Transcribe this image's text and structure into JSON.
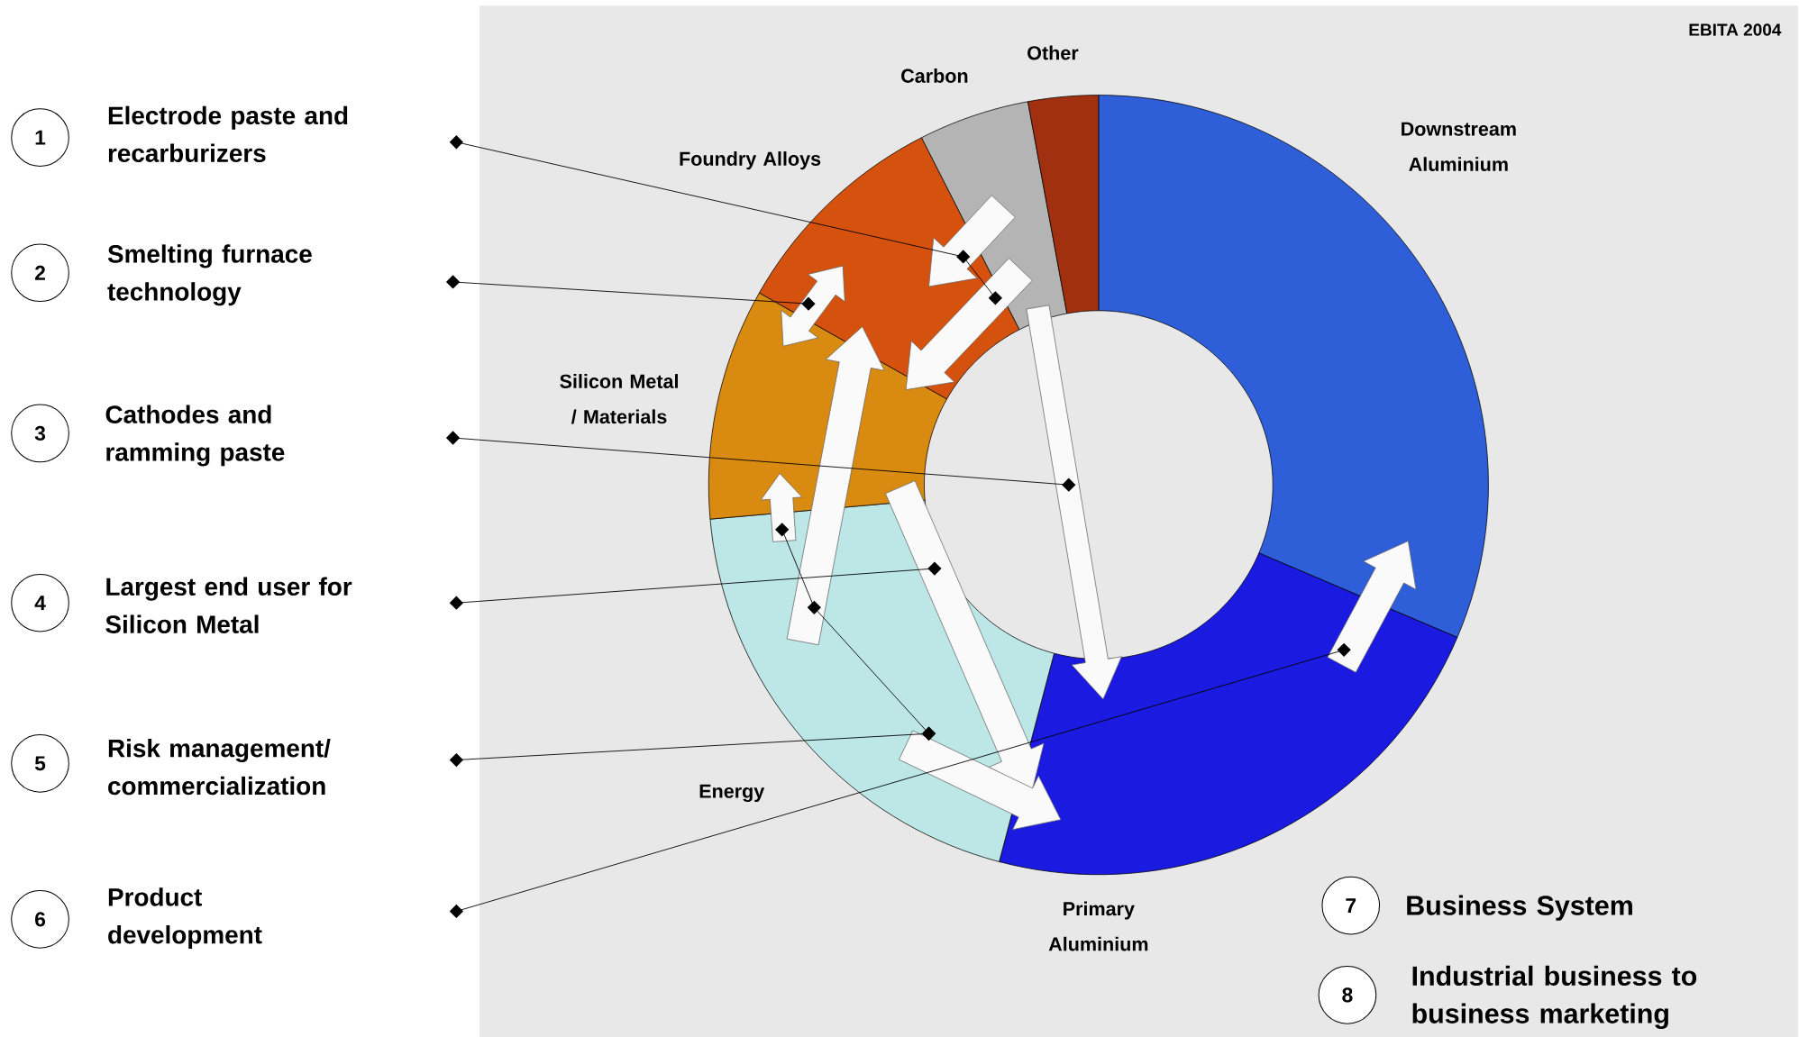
{
  "chart_data": {
    "type": "donut",
    "title": "EBITA 2004",
    "categories": [
      "Downstream Aluminium",
      "Primary Aluminium",
      "Energy",
      "Silicon Metal / Materials",
      "Foundry Alloys",
      "Carbon",
      "Other"
    ],
    "values": [
      31.4,
      22.7,
      19.5,
      9.6,
      9.3,
      4.6,
      2.9
    ],
    "colors": [
      "#2f5fd8",
      "#1a1ae0",
      "#bde6e6",
      "#d98a10",
      "#d5520e",
      "#b4b4b4",
      "#a03010"
    ],
    "annotations": [
      "1",
      "Electrode paste and recarburizers",
      "2",
      "Smelting furnace technology",
      "3",
      "Cathodes and ramming paste",
      "4",
      "Largest end user for Silicon Metal",
      "5",
      "Risk management/ commercialization",
      "6",
      "Product development",
      "7",
      "Business System",
      "8",
      "Industrial business to business marketing"
    ]
  }
}
